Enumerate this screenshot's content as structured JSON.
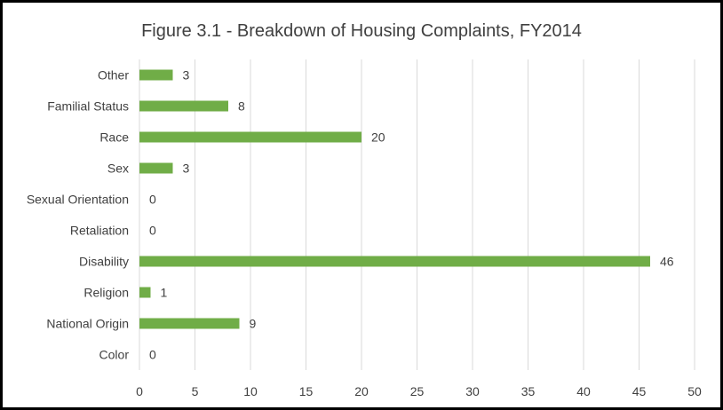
{
  "chart_data": {
    "type": "bar",
    "orientation": "horizontal",
    "title": "Figure 3.1 - Breakdown of Housing Complaints, FY2014",
    "categories": [
      "Other",
      "Familial Status",
      "Race",
      "Sex",
      "Sexual Orientation",
      "Retaliation",
      "Disability",
      "Religion",
      "National Origin",
      "Color"
    ],
    "values": [
      3,
      8,
      20,
      3,
      0,
      0,
      46,
      1,
      9,
      0
    ],
    "xlim": [
      0,
      50
    ],
    "xticks": [
      0,
      5,
      10,
      15,
      20,
      25,
      30,
      35,
      40,
      45,
      50
    ],
    "grid": "vertical",
    "legend": "none",
    "data_labels": true,
    "bar_color": "#70ad47"
  }
}
